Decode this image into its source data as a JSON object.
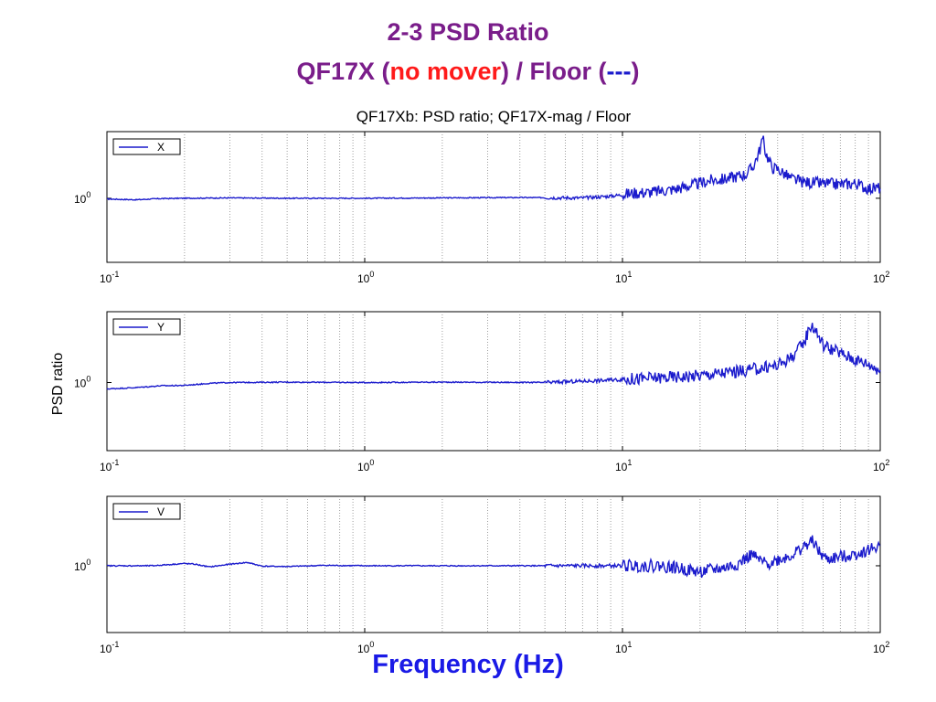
{
  "slide": {
    "title_line1": "2-3 PSD Ratio",
    "title_line2_a": "QF17X (",
    "title_line2_b": "no mover",
    "title_line2_c": ") / Floor (",
    "title_line2_d": "---",
    "title_line2_e": ")",
    "xlabel": "Frequency (Hz)"
  },
  "colors": {
    "title": "#7a1d8a",
    "highlight_red": "#ff1a1a",
    "line": "#1a1acc",
    "xlabel": "#1a1ae6"
  },
  "chart_data": {
    "type": "line",
    "title": "QF17Xb: PSD ratio; QF17X-mag / Floor",
    "ylabel": "PSD ratio",
    "xlabel": "",
    "xscale": "log",
    "yscale": "log",
    "xlim": [
      0.1,
      100
    ],
    "grid": "x-major-and-minor-dotted",
    "legend_position": "top-left",
    "x_tick_labels": [
      "10-1",
      "100",
      "101",
      "102"
    ],
    "y_tick_label": "100",
    "panels": [
      {
        "legend": "X",
        "series": {
          "name": "X",
          "x": [
            0.1,
            0.13,
            0.16,
            0.2,
            0.3,
            0.5,
            1,
            2,
            4,
            7,
            9,
            10,
            11,
            13,
            16,
            20,
            22,
            25,
            28,
            30,
            32,
            34,
            35,
            36,
            38,
            40,
            45,
            50,
            60,
            70,
            80,
            90,
            100
          ],
          "y": [
            0.98,
            0.96,
            0.99,
            1.0,
            1.01,
            1.0,
            1.0,
            1.01,
            1.02,
            1.01,
            1.06,
            1.1,
            1.15,
            1.18,
            1.28,
            1.5,
            1.62,
            1.68,
            1.82,
            1.9,
            2.3,
            3.6,
            5.0,
            3.4,
            2.3,
            2.2,
            1.7,
            1.55,
            1.48,
            1.45,
            1.5,
            1.3,
            1.32
          ]
        }
      },
      {
        "legend": "Y",
        "series": {
          "name": "Y",
          "x": [
            0.1,
            0.13,
            0.16,
            0.2,
            0.25,
            0.3,
            0.5,
            1,
            2,
            5,
            8,
            10,
            13,
            16,
            20,
            25,
            30,
            35,
            40,
            45,
            50,
            54,
            57,
            60,
            70,
            80,
            90,
            100
          ],
          "y": [
            0.85,
            0.88,
            0.92,
            0.93,
            0.98,
            1.0,
            1.01,
            1.0,
            1.01,
            1.0,
            1.05,
            1.08,
            1.12,
            1.15,
            1.2,
            1.28,
            1.35,
            1.45,
            1.55,
            1.9,
            2.6,
            4.4,
            3.5,
            2.6,
            2.1,
            1.8,
            1.6,
            1.38
          ]
        }
      },
      {
        "legend": "V",
        "series": {
          "name": "V",
          "x": [
            0.1,
            0.15,
            0.2,
            0.22,
            0.25,
            0.3,
            0.35,
            0.4,
            0.5,
            0.7,
            1,
            2,
            5,
            10,
            14,
            16,
            20,
            22,
            25,
            28,
            32,
            33,
            36,
            45,
            50,
            55,
            58,
            62,
            70,
            80,
            90,
            100
          ],
          "y": [
            1.0,
            1.0,
            1.06,
            1.04,
            0.97,
            1.04,
            1.09,
            0.99,
            0.98,
            1.01,
            1.0,
            1.0,
            1.0,
            1.0,
            1.0,
            0.95,
            0.85,
            0.9,
            0.95,
            1.05,
            1.35,
            1.2,
            1.05,
            1.3,
            1.6,
            1.9,
            1.4,
            1.18,
            1.25,
            1.35,
            1.5,
            1.7
          ]
        }
      }
    ]
  }
}
